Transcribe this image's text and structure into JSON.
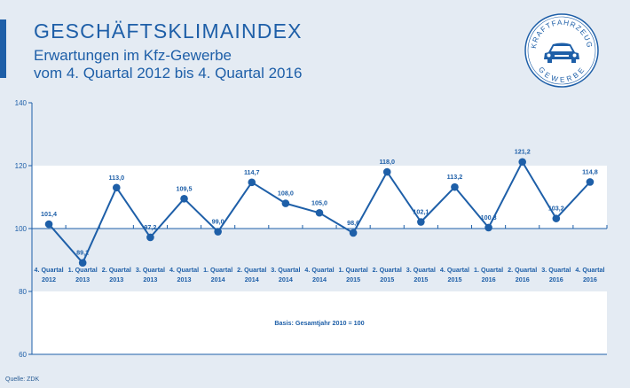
{
  "header": {
    "title": "GESCHÄFTSKLIMAINDEX",
    "subtitle_line1": "Erwartungen im Kfz-Gewerbe",
    "subtitle_line2": "vom 4. Quartal 2012 bis 4. Quartal 2016"
  },
  "footer": {
    "source": "Quelle: ZDK"
  },
  "logo": {
    "top_text": "KRAFTFAHRZEUG",
    "bottom_text": "GEWERBE",
    "icon": "car-icon"
  },
  "colors": {
    "brand_blue": "#1e5fa8",
    "background": "#e4ebf3",
    "plot_white": "#ffffff"
  },
  "chart_data": {
    "type": "line",
    "title": "",
    "xlabel": "",
    "ylabel": "",
    "ylim": [
      60,
      140
    ],
    "yticks": [
      "60",
      "80",
      "100",
      "120",
      "140"
    ],
    "categories": [
      [
        "4. Quartal",
        "2012"
      ],
      [
        "1. Quartal",
        "2013"
      ],
      [
        "2. Quartal",
        "2013"
      ],
      [
        "3. Quartal",
        "2013"
      ],
      [
        "4. Quartal",
        "2013"
      ],
      [
        "1. Quartal",
        "2014"
      ],
      [
        "2. Quartal",
        "2014"
      ],
      [
        "3. Quartal",
        "2014"
      ],
      [
        "4. Quartal",
        "2014"
      ],
      [
        "1. Quartal",
        "2015"
      ],
      [
        "2. Quartal",
        "2015"
      ],
      [
        "3. Quartal",
        "2015"
      ],
      [
        "4. Quartal",
        "2015"
      ],
      [
        "1. Quartal",
        "2016"
      ],
      [
        "2. Quartal",
        "2016"
      ],
      [
        "3. Quartal",
        "2016"
      ],
      [
        "4. Quartal",
        "2016"
      ]
    ],
    "values": [
      101.4,
      89.1,
      113.0,
      97.2,
      109.5,
      99.0,
      114.7,
      108.0,
      105.0,
      98.6,
      118.0,
      102.1,
      113.2,
      100.3,
      121.2,
      103.2,
      114.8
    ],
    "value_labels": [
      "101,4",
      "89,1",
      "113,0",
      "97,2",
      "109,5",
      "99,0",
      "114,7",
      "108,0",
      "105,0",
      "98,6",
      "118,0",
      "102,1",
      "113,2",
      "100,3",
      "121,2",
      "103,2",
      "114,8"
    ],
    "annotation": "Basis: Gesamtjahr 2010 = 100",
    "white_bands": [
      [
        100,
        120
      ],
      [
        60,
        80
      ]
    ],
    "grid": false,
    "legend": "none"
  }
}
